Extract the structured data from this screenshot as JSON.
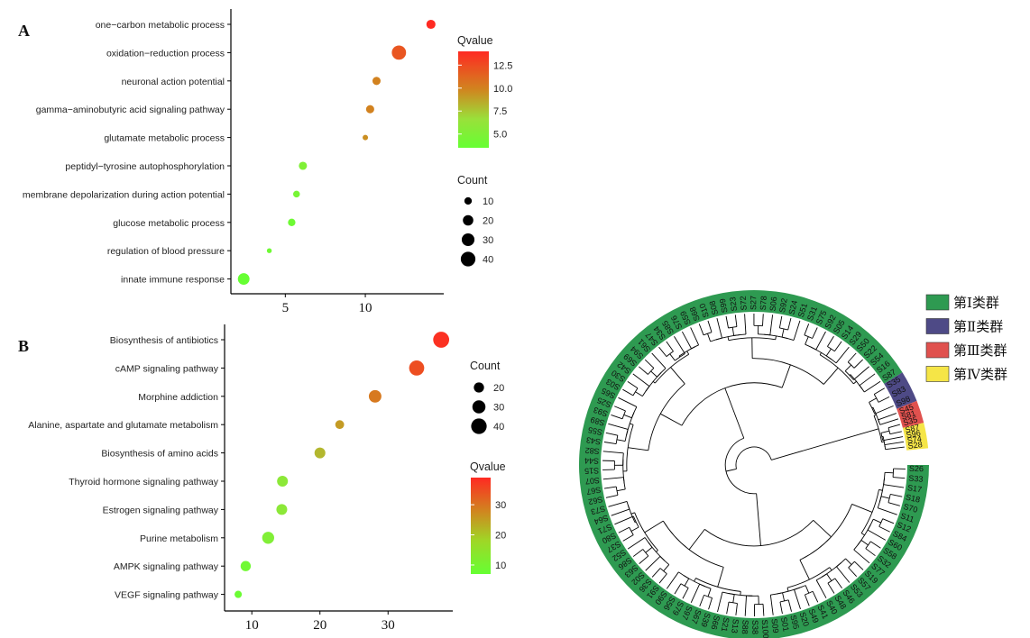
{
  "chart_data": [
    {
      "id": "A",
      "type": "scatter",
      "panel_label": "A",
      "categories": [
        "one−carbon metabolic process",
        "oxidation−reduction process",
        "neuronal action potential",
        "gamma−aminobutyric acid signaling pathway",
        "glutamate metabolic process",
        "peptidyl−tyrosine autophosphorylation",
        "membrane depolarization during action potential",
        "glucose metabolic process",
        "regulation of blood pressure",
        "innate immune response"
      ],
      "x": [
        14.1,
        12.1,
        10.7,
        10.3,
        10.0,
        6.1,
        5.7,
        5.4,
        4.0,
        2.4
      ],
      "qvalue": [
        14.0,
        12.0,
        10.0,
        10.0,
        9.5,
        5.0,
        4.5,
        4.0,
        4.0,
        3.5
      ],
      "count": [
        15,
        38,
        12,
        12,
        5,
        12,
        8,
        10,
        4,
        25
      ],
      "xticks": [
        5,
        10
      ],
      "xlim": [
        1.6,
        14.9
      ],
      "legend_qvalue": {
        "title": "Qvalue",
        "ticks": [
          "12.5",
          "10.0",
          "7.5",
          "5.0"
        ],
        "tick_values": [
          12.5,
          10.0,
          7.5,
          5.0
        ],
        "range": [
          3.5,
          14.0
        ]
      },
      "legend_count": {
        "title": "Count",
        "labels": [
          "10",
          "20",
          "30",
          "40"
        ],
        "values": [
          10,
          20,
          30,
          40
        ]
      }
    },
    {
      "id": "B",
      "type": "scatter",
      "panel_label": "B",
      "categories": [
        "Biosynthesis of antibiotics",
        "cAMP signaling pathway",
        "Morphine addiction",
        "Alanine, aspartate and glutamate metabolism",
        "Biosynthesis of amino acids",
        "Thyroid hormone signaling pathway",
        "Estrogen signaling pathway",
        "Purine metabolism",
        "AMPK signaling pathway",
        "VEGF signaling pathway"
      ],
      "x": [
        37.8,
        34.2,
        28.1,
        22.9,
        20.0,
        14.5,
        14.4,
        12.4,
        9.1,
        8.0
      ],
      "qvalue": [
        38,
        34,
        28,
        24,
        21,
        14,
        14,
        12,
        9,
        8
      ],
      "count": [
        42,
        38,
        28,
        16,
        22,
        22,
        22,
        26,
        20,
        12
      ],
      "xticks": [
        10,
        20,
        30
      ],
      "xlim": [
        6.0,
        39.5
      ],
      "legend_count": {
        "title": "Count",
        "labels": [
          "20",
          "30",
          "40"
        ],
        "values": [
          20,
          30,
          40
        ]
      },
      "legend_qvalue": {
        "title": "Qvalue",
        "ticks": [
          "30",
          "20",
          "10"
        ],
        "tick_values": [
          30,
          20,
          10
        ],
        "range": [
          7,
          39
        ]
      }
    },
    {
      "id": "C",
      "type": "circular-dendrogram",
      "groups": [
        {
          "label": "第Ⅰ类群",
          "color": "#2e9a51"
        },
        {
          "label": "第Ⅱ类群",
          "color": "#4e4a86"
        },
        {
          "label": "第Ⅲ类群",
          "color": "#e0514e"
        },
        {
          "label": "第Ⅳ类群",
          "color": "#f5e547"
        }
      ],
      "leaves_group1": [
        "S26",
        "S33",
        "S17",
        "S18",
        "S70",
        "S11",
        "S12",
        "S84",
        "S60",
        "S58",
        "S32",
        "S77",
        "S19",
        "S57",
        "S53",
        "S46",
        "S48",
        "S40",
        "S41",
        "S49",
        "S20",
        "S95",
        "S01",
        "S09",
        "S100",
        "S38",
        "S88",
        "S13",
        "S21",
        "S66",
        "S39",
        "S67",
        "S97",
        "S79",
        "S56",
        "S90",
        "S91",
        "S36",
        "S02",
        "S63",
        "S86",
        "S52",
        "S37",
        "S80",
        "S71",
        "S64",
        "S73",
        "S62",
        "S67",
        "S07",
        "S15",
        "S44",
        "S82",
        "S43",
        "S55",
        "S89",
        "S93",
        "S25",
        "S65",
        "S03",
        "S30",
        "S42",
        "S69",
        "S94",
        "S61",
        "S47",
        "S34",
        "S85",
        "S76",
        "S59",
        "S68",
        "S10",
        "S08",
        "S99",
        "S23",
        "S72",
        "S27",
        "S78",
        "S06",
        "S92",
        "S24",
        "S51",
        "S31",
        "S75",
        "S92",
        "S05",
        "S14",
        "S29",
        "S50",
        "S22",
        "S54",
        "S16",
        "S87"
      ],
      "leaves_group2": [
        "S35",
        "S83",
        "S98"
      ],
      "leaves_group3": [
        "S45",
        "S81",
        "S35"
      ],
      "leaves_group4": [
        "S87",
        "S96",
        "S74",
        "S28"
      ]
    }
  ]
}
